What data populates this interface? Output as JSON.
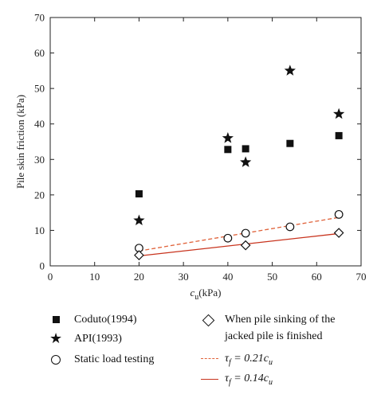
{
  "chart_data": {
    "type": "scatter",
    "xlabel": {
      "main": "c",
      "sub": "u",
      "unit": "(kPa)"
    },
    "ylabel": "Pile skin friction (kPa)",
    "xlim": [
      0,
      70
    ],
    "ylim": [
      0,
      70
    ],
    "xticks": [
      "0",
      "10",
      "20",
      "30",
      "40",
      "50",
      "60",
      "70"
    ],
    "yticks": [
      "0",
      "10",
      "20",
      "30",
      "40",
      "50",
      "60",
      "70"
    ],
    "grid": false,
    "legend_position": "below",
    "series": [
      {
        "name": "Coduto(1994)",
        "marker": "square-filled",
        "x": [
          20,
          40,
          44,
          54,
          65
        ],
        "y": [
          20.3,
          32.8,
          33.0,
          34.5,
          36.7
        ]
      },
      {
        "name": "API(1993)",
        "marker": "star-filled",
        "x": [
          20,
          40,
          44,
          54,
          65
        ],
        "y": [
          12.8,
          36.0,
          29.2,
          55.0,
          42.8
        ]
      },
      {
        "name": "Static load testing",
        "marker": "circle-open",
        "x": [
          20,
          40,
          44,
          54,
          65
        ],
        "y": [
          5.0,
          7.8,
          9.2,
          11.0,
          14.5
        ]
      },
      {
        "name": "When pile sinking of the jacked pile is finished",
        "marker": "diamond-open",
        "x": [
          20,
          44,
          65
        ],
        "y": [
          3.0,
          5.8,
          9.3
        ]
      }
    ],
    "lines": [
      {
        "name": "τf = 0.21cu",
        "style": "dashed",
        "color": "#e0623a",
        "x": [
          20,
          65
        ],
        "y": [
          4.2,
          13.65
        ]
      },
      {
        "name": "τf = 0.14cu",
        "style": "solid",
        "color": "#c8331d",
        "x": [
          20,
          65
        ],
        "y": [
          2.8,
          9.1
        ]
      }
    ]
  },
  "legend": {
    "coduto": "Coduto(1994)",
    "api": "API(1993)",
    "static": "Static load testing",
    "jacked_line1": "When pile sinking of the",
    "jacked_line2": "jacked pile is finished",
    "dashed_eq": {
      "lhs": "τ",
      "sub": "f",
      "rhs": " = 0.21c",
      "rsub": "u"
    },
    "solid_eq": {
      "lhs": "τ",
      "sub": "f",
      "rhs": " = 0.14c",
      "rsub": "u"
    }
  }
}
